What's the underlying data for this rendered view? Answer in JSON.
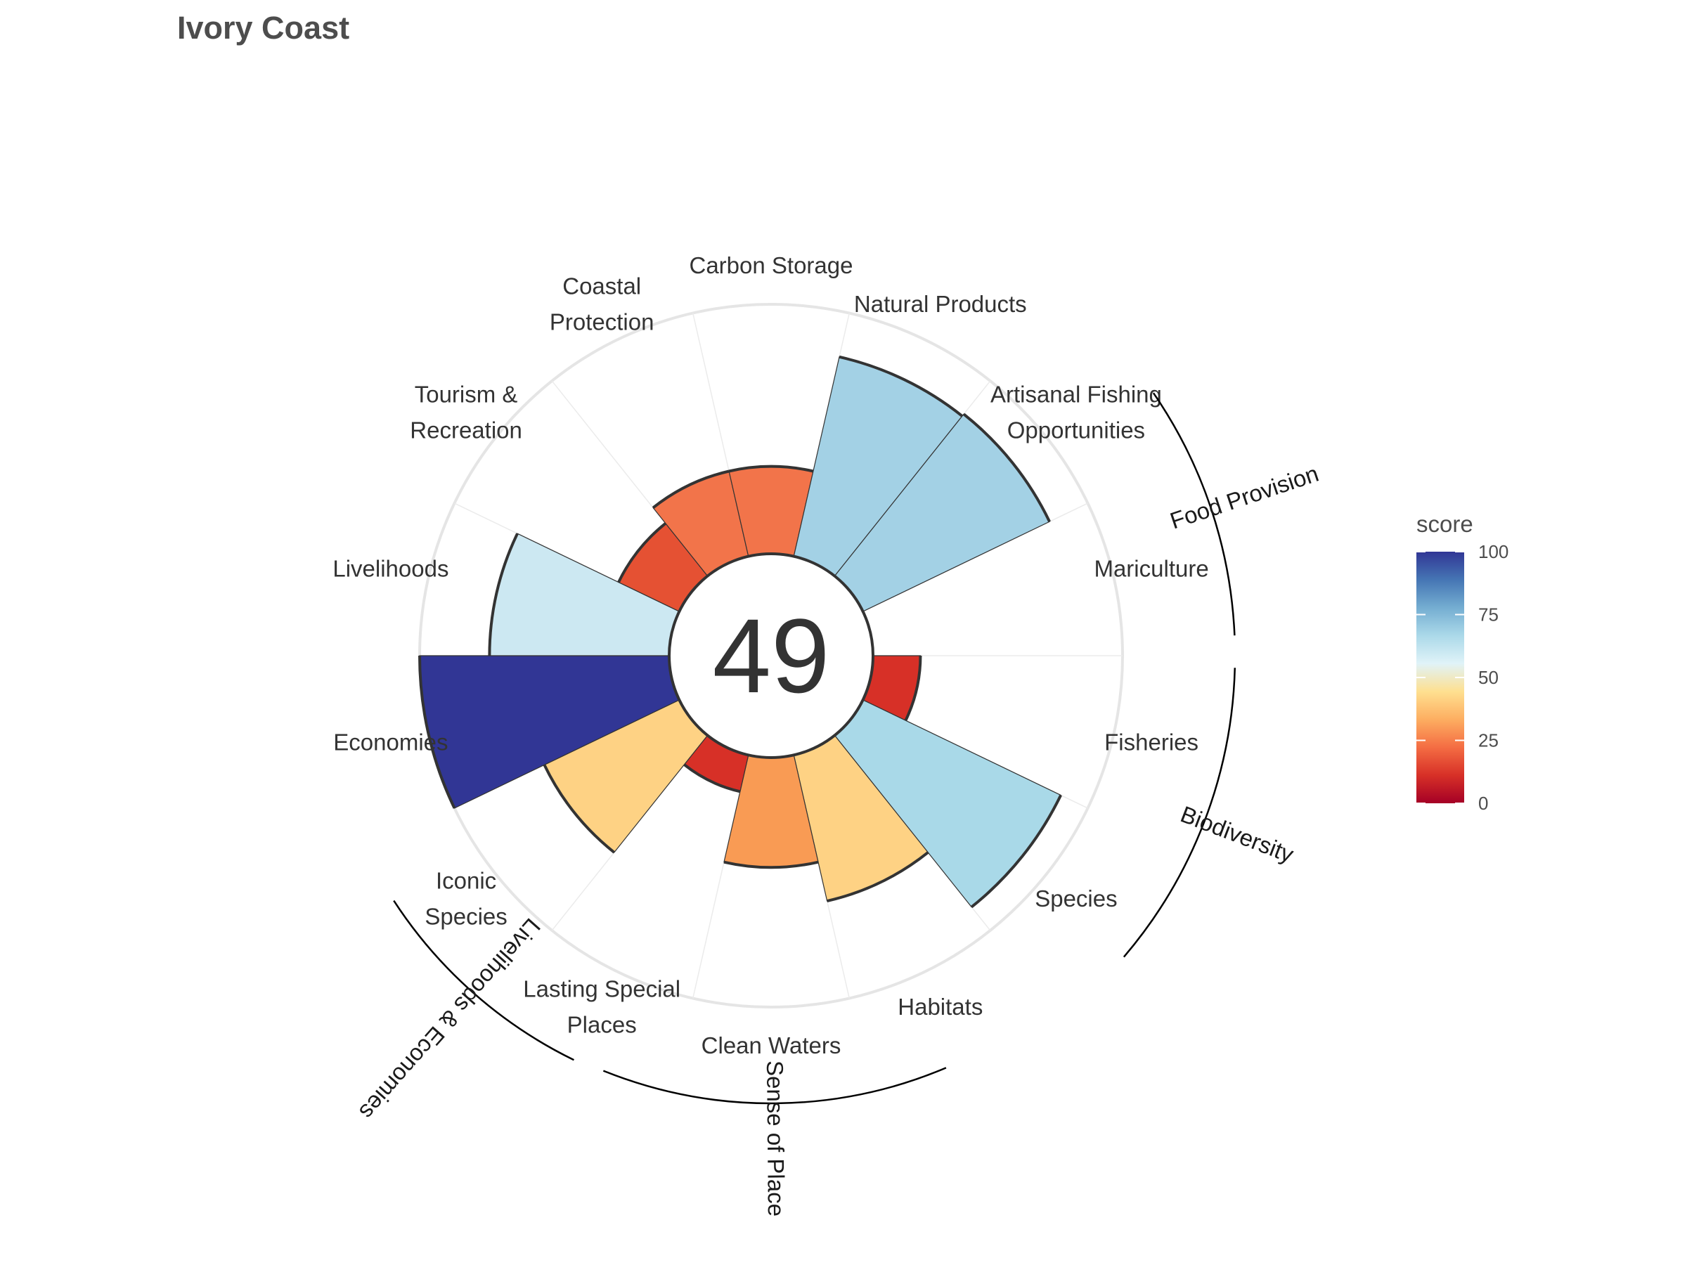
{
  "chart_data": {
    "type": "polar-bar",
    "title": "Ivory Coast",
    "center_score": "49",
    "rlim": [
      0,
      100
    ],
    "goals": [
      {
        "label": [
          "Fisheries"
        ],
        "value": 19,
        "color": "#d73027"
      },
      {
        "label": [
          "Species"
        ],
        "value": 88,
        "color": "#a9d9e8"
      },
      {
        "label": [
          "Habitats"
        ],
        "value": 60,
        "color": "#fed284"
      },
      {
        "label": [
          "Clean Waters"
        ],
        "value": 44,
        "color": "#f99b54"
      },
      {
        "label": [
          "Lasting Special",
          "Places"
        ],
        "value": 15,
        "color": "#d73027"
      },
      {
        "label": [
          "Iconic",
          "Species"
        ],
        "value": 60,
        "color": "#fed284"
      },
      {
        "label": [
          "Economies"
        ],
        "value": 100,
        "color": "#313695"
      },
      {
        "label": [
          "Livelihoods"
        ],
        "value": 72,
        "color": "#cce8f2"
      },
      {
        "label": [
          "Tourism &",
          "Recreation"
        ],
        "value": 27,
        "color": "#e55133"
      },
      {
        "label": [
          "Coastal",
          "Protection"
        ],
        "value": 35,
        "color": "#f2744a"
      },
      {
        "label": [
          "Carbon Storage"
        ],
        "value": 35,
        "color": "#f2744a"
      },
      {
        "label": [
          "Natural Products"
        ],
        "value": 82,
        "color": "#a3d1e5"
      },
      {
        "label": [
          "Artisanal Fishing",
          "Opportunities"
        ],
        "value": 83,
        "color": "#a3d1e5"
      },
      {
        "label": [
          "Mariculture"
        ],
        "value": 0,
        "color": "#ffffff"
      }
    ],
    "groups": [
      {
        "label": "Food Provision"
      },
      {
        "label": "Biodiversity"
      },
      {
        "label": "Sense of Place"
      },
      {
        "label": "Livelihoods & Economies"
      }
    ],
    "legend": {
      "title": "score",
      "ticks": [
        "0",
        "25",
        "50",
        "75",
        "100"
      ],
      "colors": [
        "#a50026",
        "#d73027",
        "#f46d43",
        "#fdae61",
        "#fee090",
        "#e0f3f8",
        "#abd9e9",
        "#74add1",
        "#4575b4",
        "#313695"
      ]
    }
  }
}
